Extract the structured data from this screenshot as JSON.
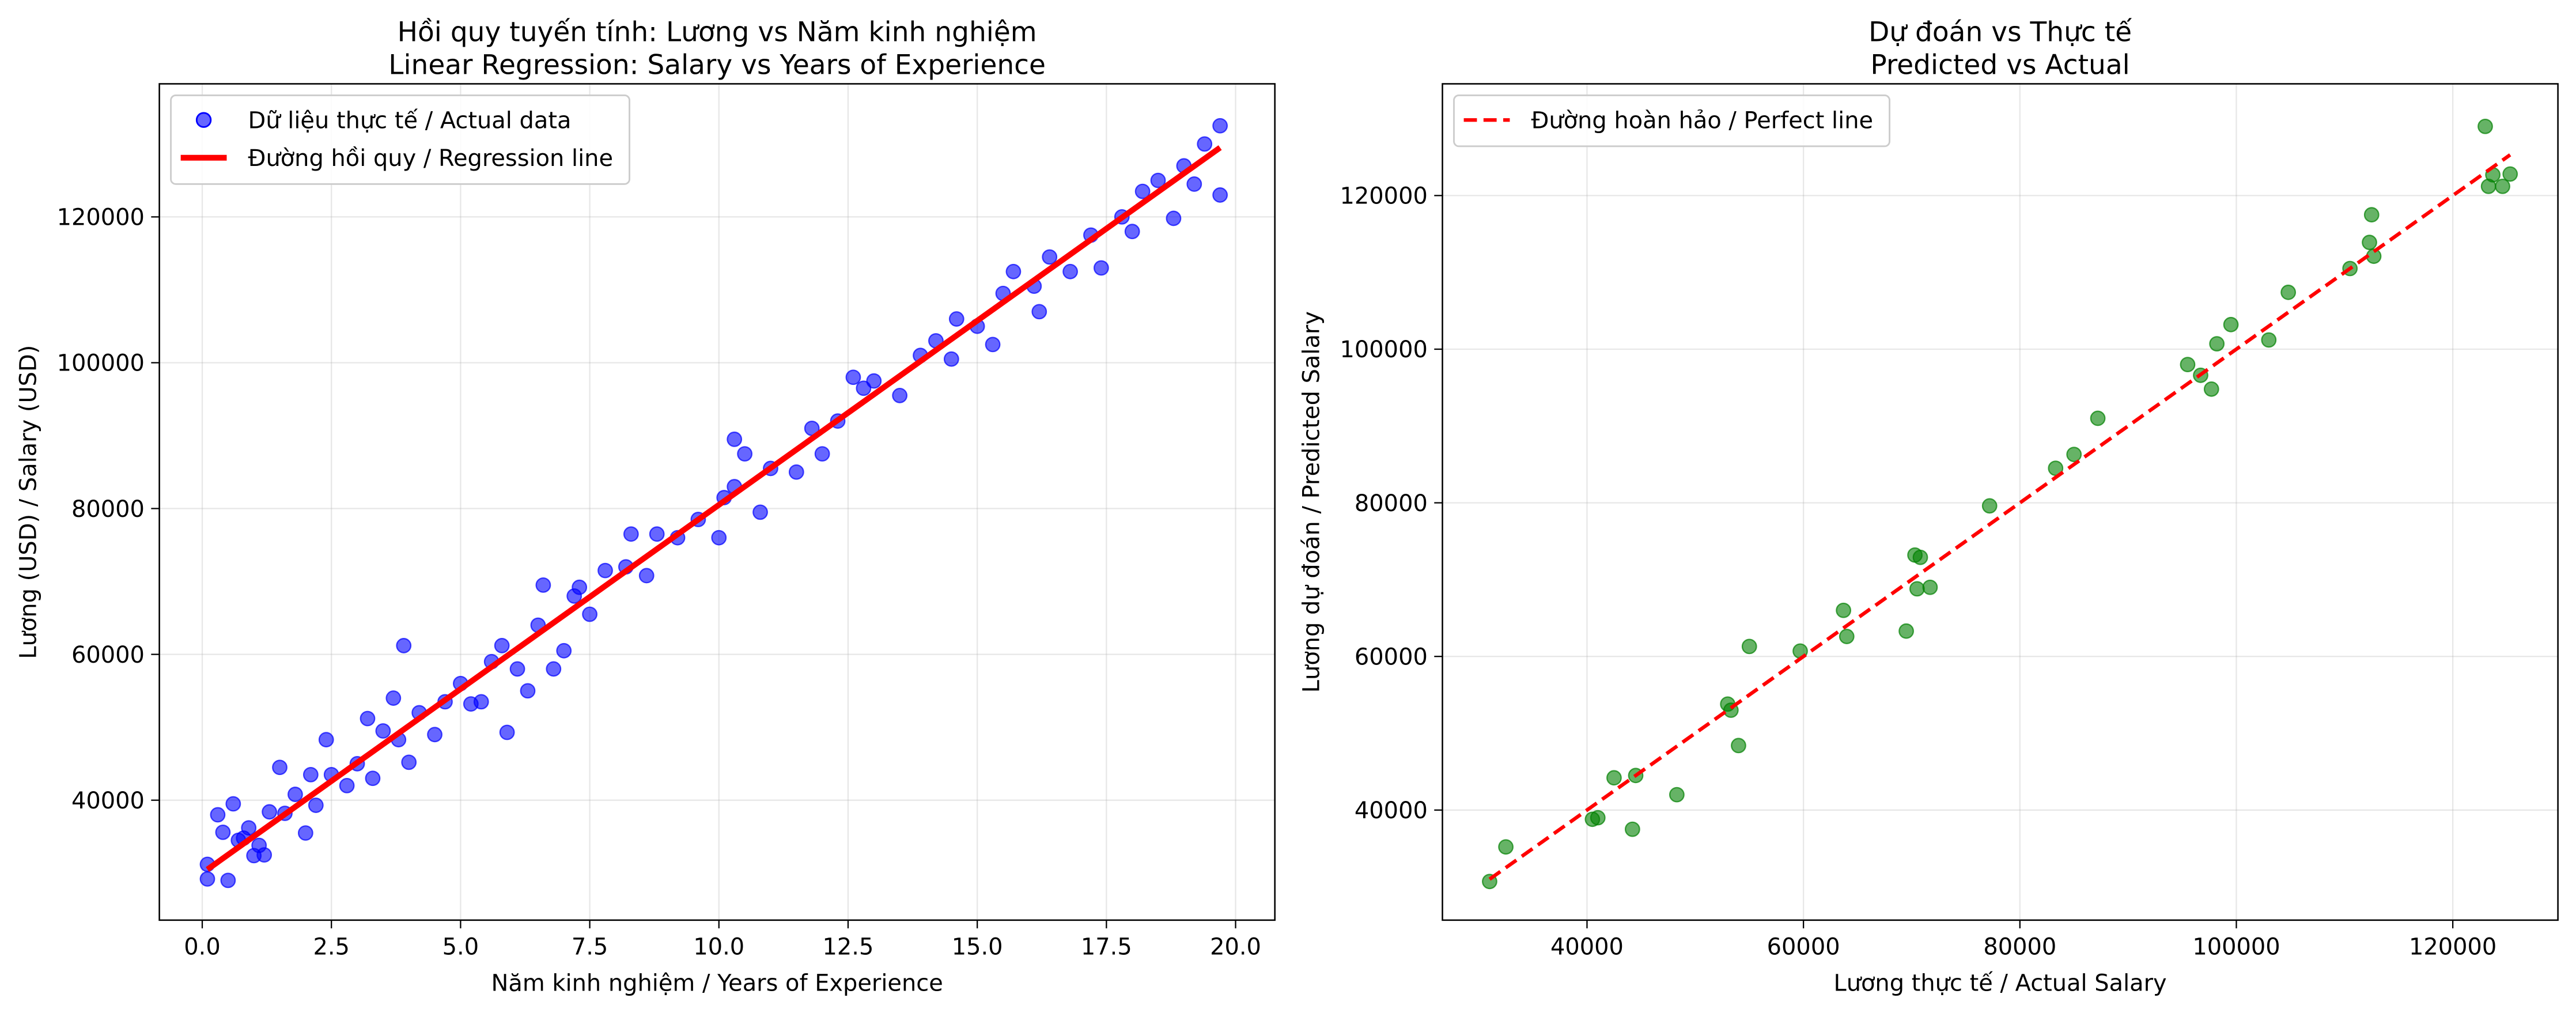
{
  "chart_data": [
    {
      "type": "scatter",
      "title": [
        "Hồi quy tuyến tính: Lương vs Năm kinh nghiệm",
        "Linear Regression: Salary vs Years of Experience"
      ],
      "x_label": "Năm kinh nghiệm / Years of Experience",
      "y_label": "Lương (USD) / Salary (USD)",
      "xlim": [
        -0.83,
        20.76
      ],
      "ylim": [
        23550,
        138250
      ],
      "xticks": [
        {
          "value": 0,
          "label": "0.0"
        },
        2.5,
        {
          "value": 5,
          "label": "5.0"
        },
        7.5,
        {
          "value": 10,
          "label": "10.0"
        },
        12.5,
        {
          "value": 15,
          "label": "15.0"
        },
        17.5,
        {
          "value": 20,
          "label": "20.0"
        }
      ],
      "yticks": [
        40000,
        60000,
        80000,
        100000,
        120000
      ],
      "grid": true,
      "legend": "upper left",
      "series": [
        {
          "name": "Dữ liệu thực tế / Actual data",
          "type": "scatter",
          "color": "#0000ff",
          "x": [
            0.1,
            0.1,
            0.3,
            0.4,
            0.5,
            0.6,
            0.7,
            0.8,
            0.9,
            1.0,
            1.1,
            1.2,
            1.3,
            1.5,
            1.6,
            1.8,
            2.0,
            2.1,
            2.2,
            2.4,
            2.5,
            2.8,
            3.0,
            3.2,
            3.3,
            3.5,
            3.7,
            3.8,
            3.9,
            4.0,
            4.2,
            4.5,
            4.7,
            5.0,
            5.2,
            5.4,
            5.6,
            5.8,
            5.9,
            6.1,
            6.3,
            6.5,
            6.6,
            6.8,
            7.0,
            7.2,
            7.3,
            7.5,
            7.8,
            8.2,
            8.3,
            8.6,
            8.8,
            9.2,
            9.6,
            10.0,
            10.1,
            10.3,
            10.3,
            10.5,
            10.8,
            11.0,
            11.5,
            11.8,
            12.0,
            12.3,
            12.6,
            12.8,
            13.0,
            13.5,
            13.9,
            14.2,
            14.5,
            14.6,
            15.0,
            15.3,
            15.5,
            15.7,
            16.1,
            16.2,
            16.4,
            16.8,
            17.2,
            17.4,
            17.8,
            18.0,
            18.2,
            18.5,
            18.8,
            19.0,
            19.2,
            19.4,
            19.7,
            19.7
          ],
          "values": [
            31200,
            29200,
            38000,
            35600,
            29000,
            39500,
            34500,
            34800,
            36200,
            32400,
            33800,
            32500,
            38400,
            44500,
            38200,
            40800,
            35500,
            43500,
            39300,
            48300,
            43500,
            42000,
            45000,
            51200,
            43000,
            49500,
            54000,
            48300,
            61200,
            45200,
            52000,
            49000,
            53500,
            56000,
            53200,
            53500,
            59000,
            61200,
            49300,
            58000,
            55000,
            64000,
            69500,
            58000,
            60500,
            68000,
            69200,
            65500,
            71500,
            72000,
            76500,
            70800,
            76500,
            76000,
            78500,
            76000,
            81500,
            83000,
            89500,
            87500,
            79500,
            85500,
            85000,
            91000,
            87500,
            92000,
            98000,
            96500,
            97500,
            95500,
            101000,
            103000,
            100500,
            106000,
            105000,
            102500,
            109500,
            112500,
            110500,
            107000,
            114500,
            112500,
            117500,
            113000,
            120000,
            118000,
            123500,
            125000,
            119800,
            127000,
            124500,
            130000,
            132500,
            123000
          ]
        },
        {
          "name": "Đường hồi quy / Regression line",
          "type": "line",
          "color": "#ff0000",
          "linestyle": "solid",
          "x": [
            0.1,
            19.7
          ],
          "values": [
            30500,
            129500
          ]
        }
      ]
    },
    {
      "type": "scatter",
      "title": [
        "Dự đoán vs Thực tế",
        "Predicted vs Actual"
      ],
      "x_label": "Lương thực tế / Actual Salary",
      "y_label": "Lương dự đoán / Predicted Salary",
      "xlim": [
        26640,
        129715
      ],
      "ylim": [
        25670,
        134545
      ],
      "xticks": [
        40000,
        60000,
        80000,
        100000,
        120000
      ],
      "yticks": [
        40000,
        60000,
        80000,
        100000,
        120000
      ],
      "grid": true,
      "legend": "upper left",
      "series": [
        {
          "type": "scatter",
          "color": "#008000",
          "x": [
            31000,
            32500,
            40500,
            41000,
            42500,
            44200,
            44500,
            48300,
            53000,
            53300,
            54000,
            55000,
            59700,
            63700,
            64000,
            69500,
            70300,
            70500,
            70800,
            71700,
            77200,
            83300,
            85000,
            87200,
            95500,
            96700,
            97700,
            98200,
            99500,
            103000,
            104800,
            110500,
            112300,
            112500,
            112700,
            123000,
            123300,
            123700,
            124600,
            125300
          ],
          "values": [
            30700,
            35200,
            38800,
            39000,
            44200,
            37500,
            44500,
            42000,
            53800,
            53000,
            48400,
            61300,
            60700,
            66000,
            62600,
            63300,
            73200,
            68800,
            72900,
            69000,
            79600,
            84500,
            86300,
            91000,
            98000,
            96600,
            94800,
            100700,
            103200,
            101200,
            107400,
            110500,
            113900,
            117500,
            112100,
            129000,
            121200,
            122700,
            121200,
            122800
          ]
        },
        {
          "name": "Đường hoàn hảo / Perfect line",
          "type": "line",
          "color": "#ff0000",
          "linestyle": "dashed",
          "x": [
            31000,
            125300
          ],
          "values": [
            31000,
            125300
          ]
        }
      ]
    }
  ]
}
